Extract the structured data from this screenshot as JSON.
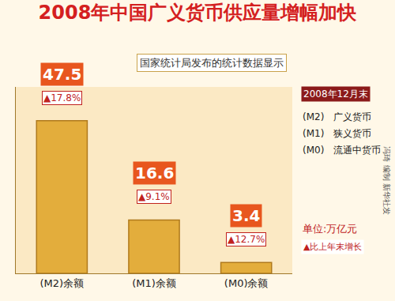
{
  "chart_data": {
    "type": "bar",
    "title": "2008年中国广义货币供应量增幅加快",
    "subtitle": "国家统计局发布的统计数据显示",
    "categories": [
      "(M2)余额",
      "(M1)余额",
      "(M0)余额"
    ],
    "values": [
      47.5,
      16.6,
      3.4
    ],
    "growth_labels": [
      "▲17.8%",
      "▲9.1%",
      "▲12.7%"
    ],
    "annotations": [
      "2008年12月末",
      "(M2)　广义货币",
      "(M1)　狭义货币",
      "(M0)　流通中货币",
      "单位:万亿元",
      "▲比上年末增长",
      "冯琦 编制 新华社发"
    ],
    "color": "#e3ad3c",
    "ylim": [
      0,
      58
    ],
    "grid": false,
    "data_labels": true,
    "tick_labels": "x"
  }
}
